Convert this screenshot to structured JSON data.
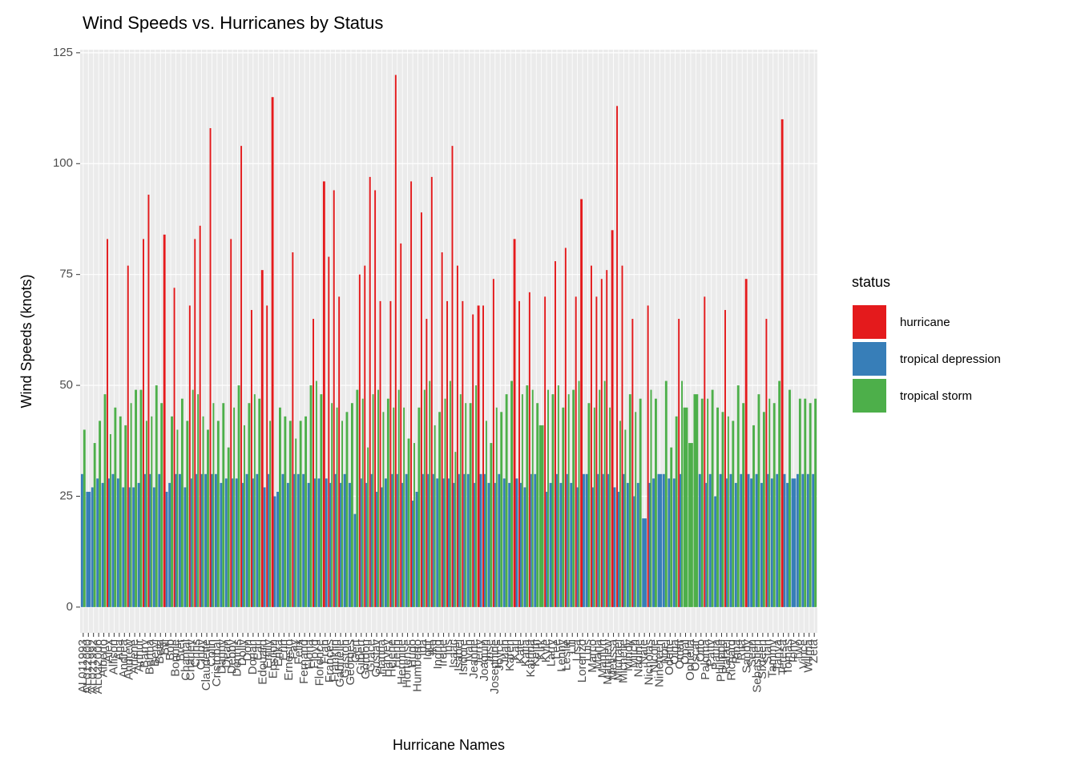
{
  "chart_data": {
    "type": "bar",
    "title": "Wind Speeds vs. Hurricanes by Status",
    "x_label": "Hurricane Names",
    "y_label": "Wind Speeds (knots)",
    "legend_title": "status",
    "categories": [
      "AL011993",
      "AL012000",
      "AL021992",
      "AL022006",
      "Alberto",
      "Alex",
      "Allison",
      "Ana",
      "Andrea",
      "Andrew",
      "Arlene",
      "Arthur",
      "Barry",
      "Bertha",
      "Beryl",
      "Beta",
      "Bill",
      "Bob",
      "Bonnie",
      "Bret",
      "Chantal",
      "Charley",
      "Chris",
      "Cindy",
      "Claudette",
      "Colin",
      "Cristobal",
      "Danny",
      "Dean",
      "Debby",
      "Dennis",
      "Dolly",
      "Don",
      "Dorian",
      "Earl",
      "Edouard",
      "Emily",
      "Epsilon",
      "Erika",
      "Erin",
      "Ernesto",
      "Fay",
      "Felix",
      "Fernand",
      "Fiona",
      "Floyd",
      "Florence",
      "Fran",
      "Frances",
      "Franklin",
      "Gabrielle",
      "Gaston",
      "Georges",
      "Gert",
      "Gilbert",
      "Gordon",
      "Grace",
      "Gustav",
      "Hanna",
      "Harvey",
      "Helene",
      "Henri",
      "Hermine",
      "Hortense",
      "Hugo",
      "Humberto",
      "Ida",
      "Igor",
      "Ike",
      "Ingrid",
      "Irene",
      "Iris",
      "Isaac",
      "Isabel",
      "Isidore",
      "Ivan",
      "Jeanne",
      "Jerry",
      "Joaquin",
      "Jose",
      "Josephine",
      "Joyce",
      "Juan",
      "Karen",
      "Karl",
      "Kate",
      "Katia",
      "Katrina",
      "Keith",
      "Kirk",
      "Kyle",
      "Larry",
      "Lee",
      "Lenny",
      "Leslie",
      "Lili",
      "Lisa",
      "Lorenzo",
      "Luis",
      "Marco",
      "Maria",
      "Marilyn",
      "Matthew",
      "Melissa",
      "Michael",
      "Michelle",
      "Mindy",
      "Mitch",
      "Nadine",
      "Nate",
      "Nicholas",
      "Nicole",
      "Nineteen",
      "Noel",
      "Odette",
      "Olga",
      "Omar",
      "Opal",
      "Ophelia",
      "Oscar",
      "Otto",
      "Paloma",
      "Patty",
      "Paula",
      "Philippe",
      "Rafael",
      "Richard",
      "Rina",
      "Rita",
      "Sandy",
      "Sean",
      "Sebastien",
      "Sixteen",
      "Stan",
      "Tammy",
      "Tanya",
      "Teresa",
      "Tomas",
      "Tony",
      "Two",
      "Vince",
      "Wilma",
      "Zeta"
    ],
    "series": [
      {
        "name": "hurricane",
        "color": "#e41a1c",
        "values": [
          null,
          null,
          null,
          null,
          null,
          83,
          null,
          null,
          null,
          77,
          null,
          null,
          83,
          93,
          null,
          null,
          84,
          null,
          72,
          null,
          null,
          68,
          83,
          86,
          null,
          108,
          null,
          null,
          null,
          83,
          null,
          104,
          null,
          67,
          null,
          76,
          68,
          115,
          null,
          null,
          null,
          80,
          null,
          null,
          null,
          65,
          null,
          96,
          79,
          94,
          70,
          null,
          null,
          null,
          75,
          77,
          97,
          94,
          69,
          null,
          69,
          120,
          82,
          null,
          96,
          null,
          89,
          65,
          97,
          null,
          80,
          69,
          104,
          77,
          69,
          null,
          66,
          68,
          68,
          null,
          74,
          null,
          null,
          null,
          83,
          69,
          null,
          71,
          null,
          null,
          70,
          null,
          78,
          null,
          81,
          null,
          70,
          92,
          null,
          77,
          70,
          74,
          76,
          85,
          113,
          77,
          null,
          65,
          null,
          null,
          68,
          null,
          null,
          null,
          null,
          null,
          65,
          null,
          null,
          null,
          null,
          70,
          null,
          null,
          null,
          67,
          null,
          null,
          null,
          74,
          null,
          null,
          null,
          65,
          null,
          null,
          110,
          null,
          null,
          null,
          null,
          null,
          null
        ]
      },
      {
        "name": "tropical depression",
        "color": "#377eb8",
        "values": [
          30,
          26,
          27,
          29,
          28,
          29,
          30,
          29,
          27,
          27,
          27,
          28,
          30,
          30,
          27,
          30,
          26,
          28,
          30,
          30,
          27,
          29,
          30,
          30,
          30,
          30,
          30,
          28,
          29,
          29,
          29,
          28,
          30,
          29,
          30,
          27,
          30,
          25,
          26,
          30,
          28,
          30,
          30,
          30,
          28,
          29,
          29,
          29,
          28,
          30,
          28,
          30,
          28,
          21,
          29,
          28,
          30,
          26,
          27,
          29,
          30,
          30,
          28,
          30,
          24,
          26,
          30,
          30,
          30,
          29,
          29,
          29,
          28,
          30,
          30,
          30,
          28,
          30,
          30,
          28,
          28,
          30,
          29,
          28,
          29,
          28,
          27,
          30,
          30,
          null,
          26,
          28,
          30,
          28,
          30,
          28,
          27,
          30,
          30,
          27,
          30,
          30,
          30,
          27,
          26,
          30,
          28,
          25,
          28,
          20,
          28,
          29,
          30,
          30,
          29,
          29,
          30,
          null,
          null,
          null,
          30,
          28,
          30,
          25,
          30,
          29,
          30,
          28,
          30,
          30,
          29,
          30,
          28,
          30,
          29,
          30,
          30,
          28,
          29,
          30,
          30,
          30,
          30
        ]
      },
      {
        "name": "tropical storm",
        "color": "#4daf4a",
        "values": [
          40,
          null,
          37,
          42,
          48,
          39,
          45,
          43,
          41,
          46,
          49,
          49,
          42,
          43,
          50,
          46,
          null,
          43,
          40,
          47,
          42,
          49,
          48,
          43,
          40,
          46,
          42,
          46,
          36,
          45,
          50,
          41,
          46,
          48,
          47,
          null,
          42,
          null,
          45,
          43,
          42,
          38,
          42,
          43,
          50,
          51,
          48,
          null,
          46,
          45,
          42,
          44,
          46,
          49,
          47,
          36,
          48,
          49,
          44,
          47,
          45,
          49,
          45,
          38,
          37,
          45,
          49,
          51,
          41,
          44,
          47,
          51,
          35,
          48,
          46,
          46,
          50,
          null,
          42,
          37,
          45,
          44,
          48,
          51,
          null,
          48,
          50,
          49,
          46,
          41,
          49,
          48,
          50,
          45,
          48,
          49,
          51,
          null,
          46,
          45,
          49,
          51,
          45,
          null,
          42,
          40,
          48,
          44,
          47,
          null,
          49,
          47,
          null,
          51,
          36,
          43,
          51,
          45,
          37,
          48,
          47,
          47,
          49,
          45,
          44,
          43,
          42,
          50,
          46,
          null,
          41,
          48,
          44,
          47,
          46,
          51,
          null,
          49,
          null,
          47,
          47,
          46,
          47
        ]
      }
    ],
    "ylim": [
      -5.8,
      125.7
    ],
    "yticks": [
      0,
      25,
      50,
      75,
      100,
      125
    ],
    "grid": true
  }
}
